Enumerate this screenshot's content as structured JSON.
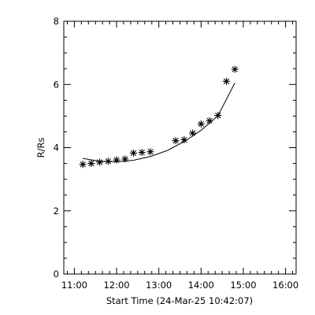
{
  "chart_data": {
    "type": "scatter",
    "title": "",
    "xlabel": "Start Time (24-Mar-25 10:42:07)",
    "ylabel": "R/Rs",
    "x_tick_labels": [
      "11:00",
      "12:00",
      "13:00",
      "14:00",
      "15:00",
      "16:00"
    ],
    "y_tick_labels": [
      "0",
      "2",
      "4",
      "6",
      "8"
    ],
    "xlim": [
      "10:45",
      "16:15"
    ],
    "ylim": [
      0,
      8
    ],
    "grid": false,
    "legend": "none",
    "series": [
      {
        "marker": "asterisk",
        "points": [
          {
            "x": "11:12",
            "y": 3.47
          },
          {
            "x": "11:24",
            "y": 3.5
          },
          {
            "x": "11:36",
            "y": 3.54
          },
          {
            "x": "11:48",
            "y": 3.57
          },
          {
            "x": "12:00",
            "y": 3.61
          },
          {
            "x": "12:12",
            "y": 3.64
          },
          {
            "x": "12:24",
            "y": 3.83
          },
          {
            "x": "12:36",
            "y": 3.85
          },
          {
            "x": "12:48",
            "y": 3.87
          },
          {
            "x": "13:24",
            "y": 4.22
          },
          {
            "x": "13:36",
            "y": 4.25
          },
          {
            "x": "13:48",
            "y": 4.46
          },
          {
            "x": "14:00",
            "y": 4.75
          },
          {
            "x": "14:12",
            "y": 4.85
          },
          {
            "x": "14:24",
            "y": 5.02
          },
          {
            "x": "14:36",
            "y": 6.1
          },
          {
            "x": "14:48",
            "y": 6.48
          }
        ]
      },
      {
        "style": "line",
        "points": [
          {
            "x": "11:12",
            "y": 3.66
          },
          {
            "x": "11:36",
            "y": 3.57
          },
          {
            "x": "12:00",
            "y": 3.55
          },
          {
            "x": "12:24",
            "y": 3.6
          },
          {
            "x": "12:48",
            "y": 3.72
          },
          {
            "x": "13:12",
            "y": 3.91
          },
          {
            "x": "13:36",
            "y": 4.19
          },
          {
            "x": "14:00",
            "y": 4.55
          },
          {
            "x": "14:24",
            "y": 5.01
          },
          {
            "x": "14:48",
            "y": 6.05
          }
        ]
      }
    ]
  }
}
